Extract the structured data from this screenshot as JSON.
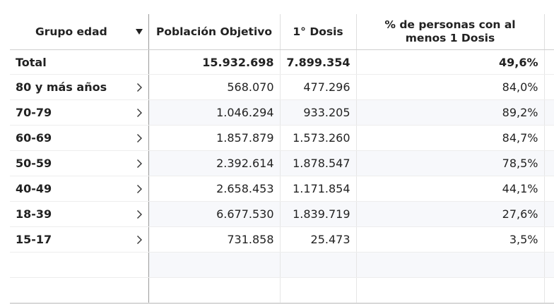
{
  "columns": {
    "group": "Grupo edad",
    "population": "Población Objetivo",
    "dose": "1° Dosis",
    "percent_line1": "% de personas con al",
    "percent_line2": "menos 1 Dosis"
  },
  "sort_icon": "triangle-down-icon",
  "expand_icon": "chevron-right-icon",
  "total": {
    "label": "Total",
    "population": "15.932.698",
    "dose": "7.899.354",
    "percent": "49,6%"
  },
  "rows": [
    {
      "label": "80 y más años",
      "population": "568.070",
      "dose": "477.296",
      "percent": "84,0%"
    },
    {
      "label": "70-79",
      "population": "1.046.294",
      "dose": "933.205",
      "percent": "89,2%"
    },
    {
      "label": "60-69",
      "population": "1.857.879",
      "dose": "1.573.260",
      "percent": "84,7%"
    },
    {
      "label": "50-59",
      "population": "2.392.614",
      "dose": "1.878.547",
      "percent": "78,5%"
    },
    {
      "label": "40-49",
      "population": "2.658.453",
      "dose": "1.171.854",
      "percent": "44,1%"
    },
    {
      "label": "18-39",
      "population": "6.677.530",
      "dose": "1.839.719",
      "percent": "27,6%"
    },
    {
      "label": "15-17",
      "population": "731.858",
      "dose": "25.473",
      "percent": "3,5%"
    }
  ]
}
